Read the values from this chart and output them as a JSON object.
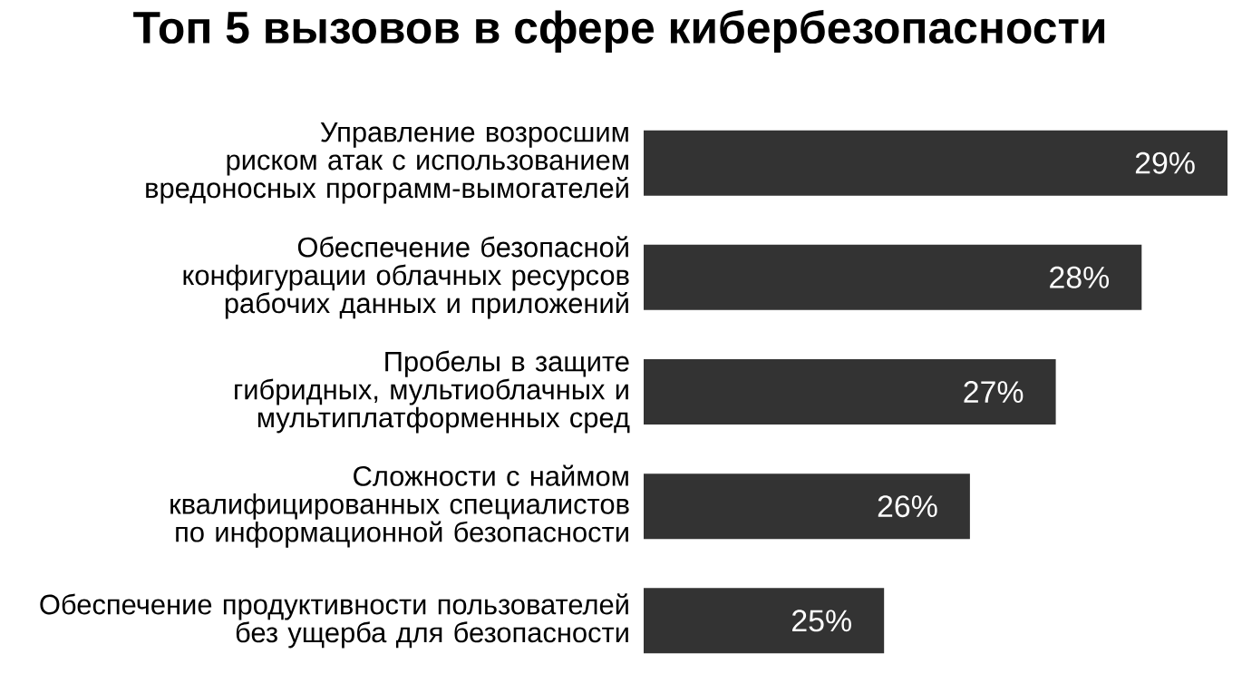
{
  "chart_data": {
    "type": "bar",
    "orientation": "horizontal",
    "title": "Топ 5 вызовов в сфере кибербезопасности",
    "categories": [
      "Управление возросшим риском атак с использованием вредоносных программ-вымогателей",
      "Обеспечение безопасной конфигурации облачных ресурсов рабочих данных и приложений",
      "Пробелы в защите гибридных, мультиоблачных и мультиплатформенных сред",
      "Сложности с наймом квалифицированных специалистов по информационной безопасности",
      "Обеспечение продуктивности пользователей без ущерба для безопасности"
    ],
    "values": [
      29,
      28,
      27,
      26,
      25
    ],
    "value_labels": [
      "29%",
      "28%",
      "27%",
      "26%",
      "25%"
    ],
    "color": "#333333",
    "xlim": [
      22.2,
      29
    ],
    "tick_labels": "y"
  }
}
